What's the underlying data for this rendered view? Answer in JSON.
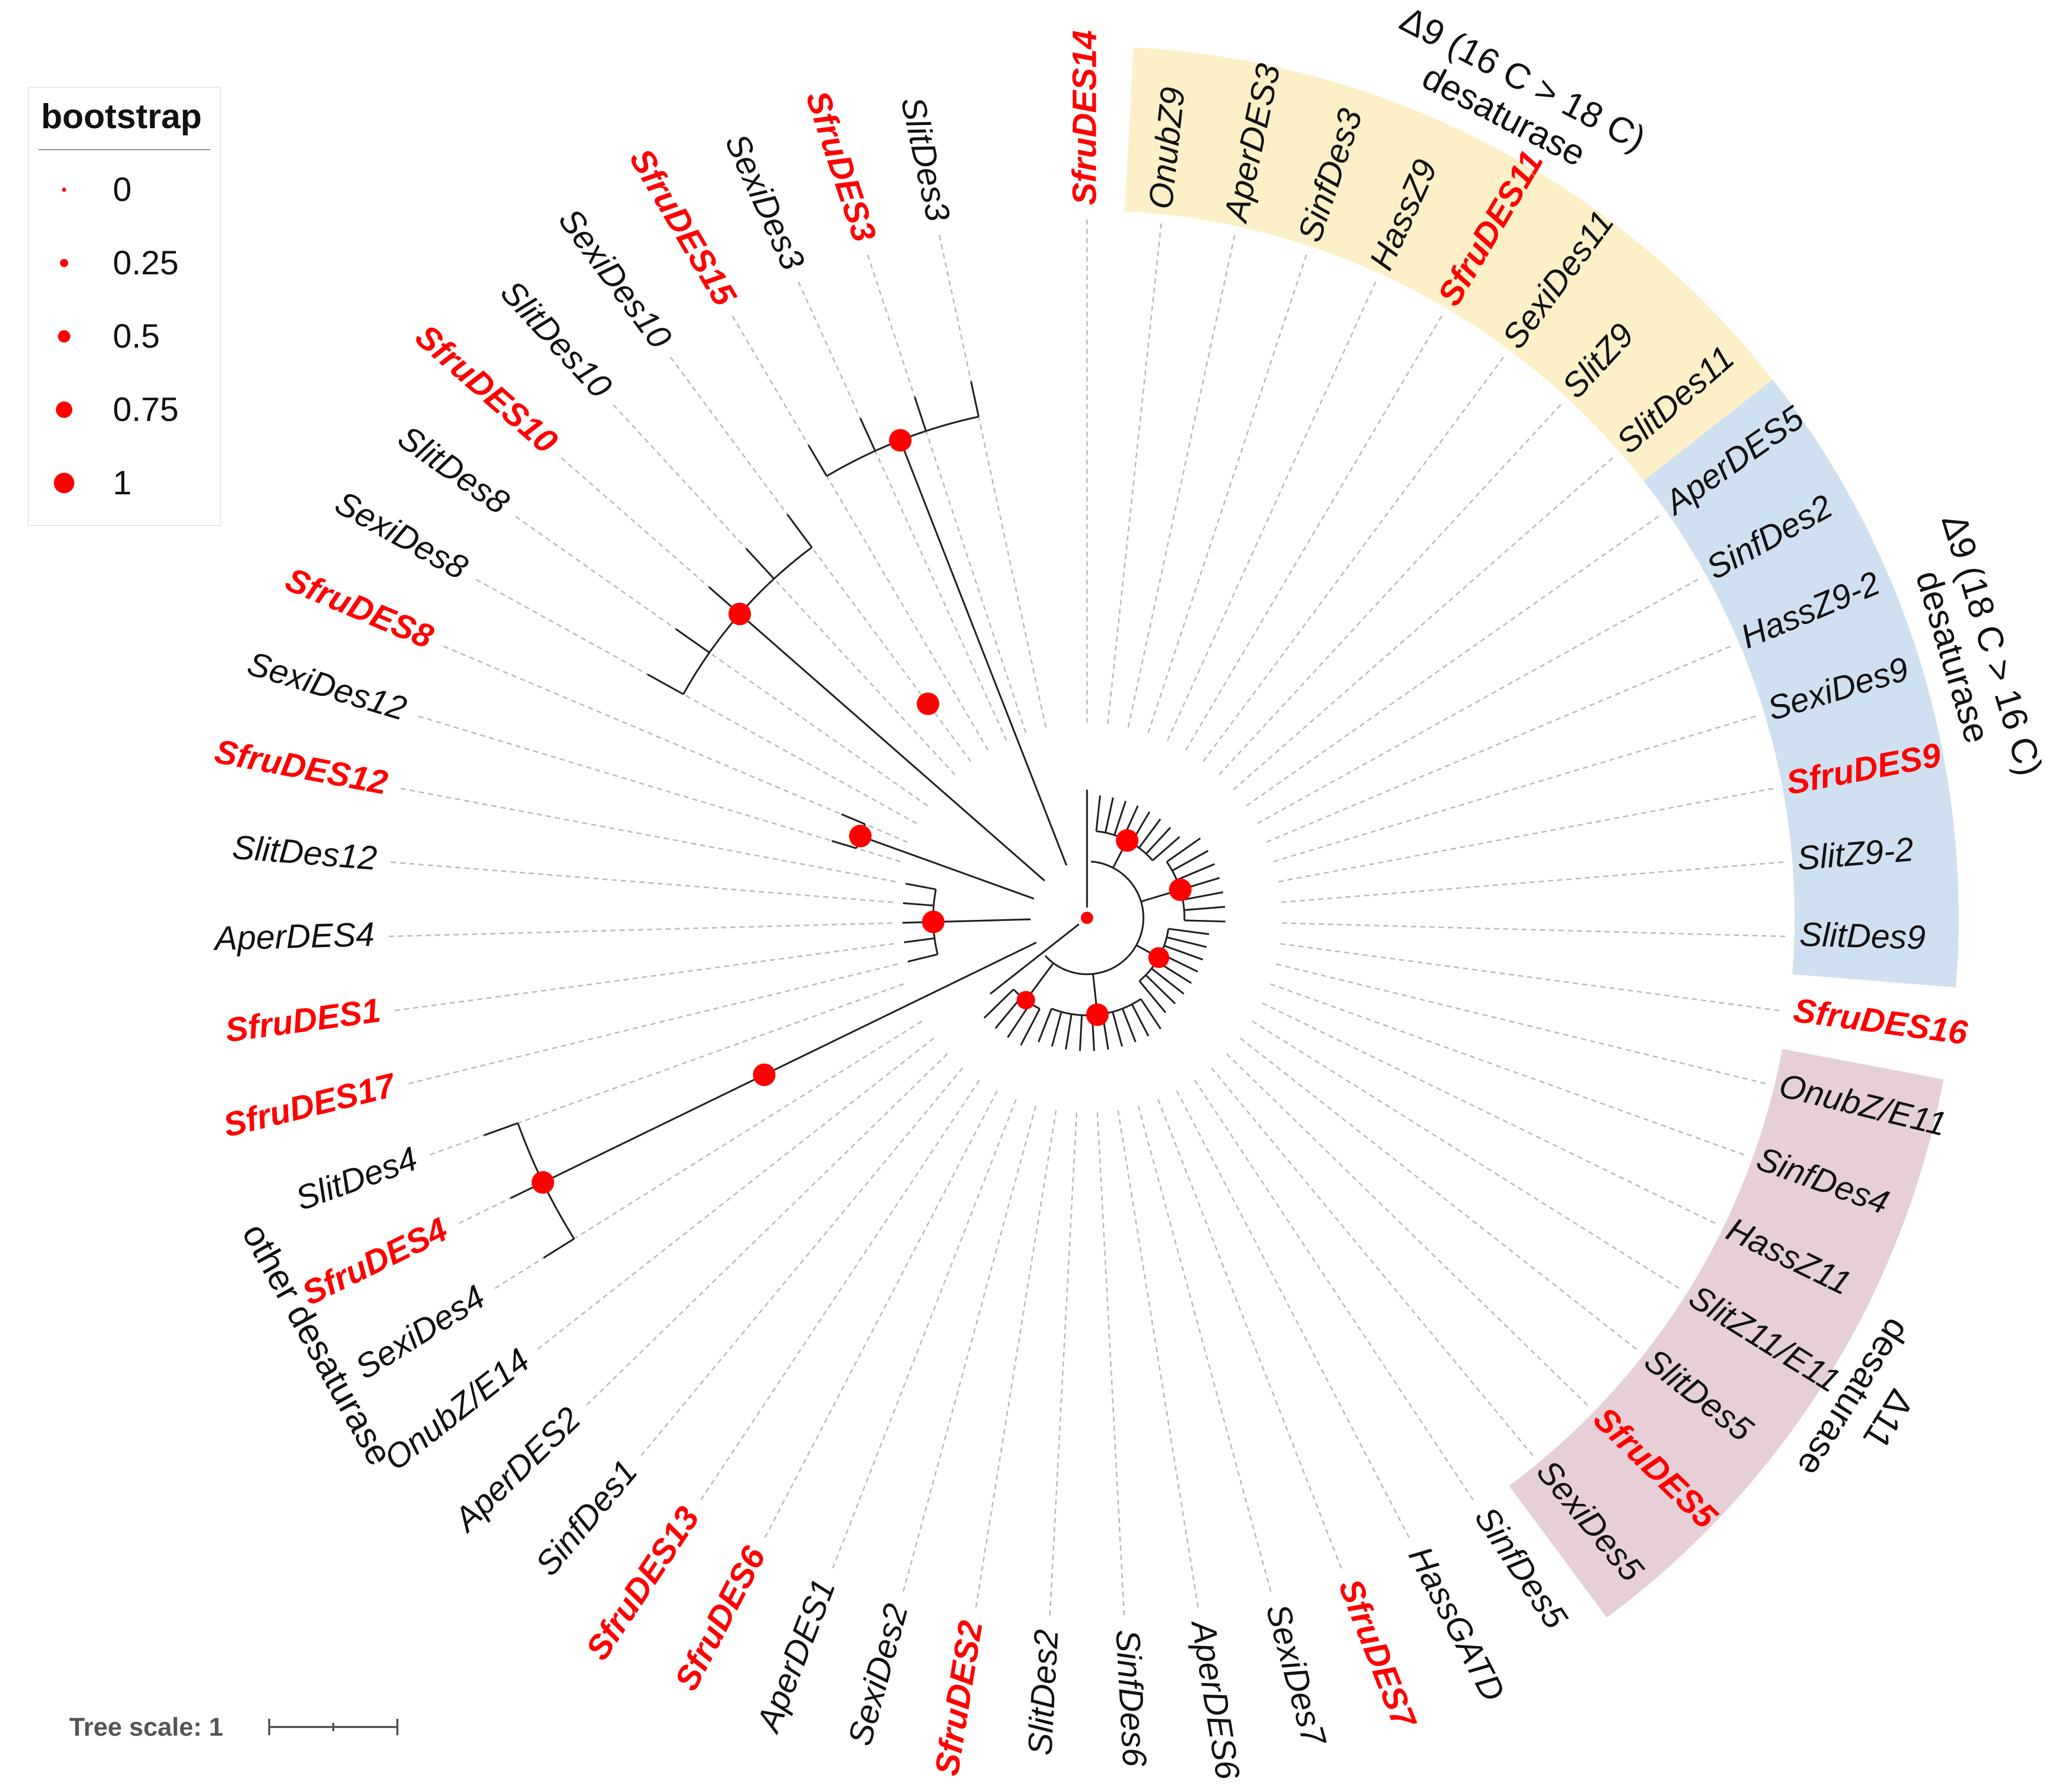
{
  "legend": {
    "title": "bootstrap",
    "items": [
      {
        "label": "0",
        "value": 0
      },
      {
        "label": "0.25",
        "value": 0.25
      },
      {
        "label": "0.5",
        "value": 0.5
      },
      {
        "label": "0.75",
        "value": 0.75
      },
      {
        "label": "1",
        "value": 1
      }
    ]
  },
  "scale": {
    "label": "Tree scale: 1"
  },
  "colors": {
    "highlight": "#ff0000",
    "normal": "#111111",
    "yellow": "#fdf0c8",
    "blue": "#cfe0f1",
    "pink": "#e7cfd7",
    "node": "#ff0000"
  },
  "leaves": [
    {
      "name": "SfruDES14",
      "hl": true
    },
    {
      "name": "OnubZ9",
      "hl": false
    },
    {
      "name": "AperDES3",
      "hl": false
    },
    {
      "name": "SinfDes3",
      "hl": false
    },
    {
      "name": "HassZ9",
      "hl": false
    },
    {
      "name": "SfruDES11",
      "hl": true
    },
    {
      "name": "SexiDes11",
      "hl": false
    },
    {
      "name": "SlitZ9",
      "hl": false
    },
    {
      "name": "SlitDes11",
      "hl": false
    },
    {
      "name": "AperDES5",
      "hl": false
    },
    {
      "name": "SinfDes2",
      "hl": false
    },
    {
      "name": "HassZ9-2",
      "hl": false
    },
    {
      "name": "SexiDes9",
      "hl": false
    },
    {
      "name": "SfruDES9",
      "hl": true
    },
    {
      "name": "SlitZ9-2",
      "hl": false
    },
    {
      "name": "SlitDes9",
      "hl": false
    },
    {
      "name": "SfruDES16",
      "hl": true
    },
    {
      "name": "OnubZ/E11",
      "hl": false
    },
    {
      "name": "SinfDes4",
      "hl": false
    },
    {
      "name": "HassZ11",
      "hl": false
    },
    {
      "name": "SlitZ11/E11",
      "hl": false
    },
    {
      "name": "SlitDes5",
      "hl": false
    },
    {
      "name": "SfruDES5",
      "hl": true
    },
    {
      "name": "SexiDes5",
      "hl": false
    },
    {
      "name": "SinfDes5",
      "hl": false
    },
    {
      "name": "HassGATD",
      "hl": false
    },
    {
      "name": "SfruDES7",
      "hl": true
    },
    {
      "name": "SexiDes7",
      "hl": false
    },
    {
      "name": "AperDES6",
      "hl": false
    },
    {
      "name": "SinfDes6",
      "hl": false
    },
    {
      "name": "SlitDes2",
      "hl": false
    },
    {
      "name": "SfruDES2",
      "hl": true
    },
    {
      "name": "SexiDes2",
      "hl": false
    },
    {
      "name": "AperDES1",
      "hl": false
    },
    {
      "name": "SfruDES6",
      "hl": true
    },
    {
      "name": "SfruDES13",
      "hl": true
    },
    {
      "name": "SinfDes1",
      "hl": false
    },
    {
      "name": "AperDES2",
      "hl": false
    },
    {
      "name": "OnubZ/E14",
      "hl": false
    },
    {
      "name": "SexiDes4",
      "hl": false
    },
    {
      "name": "SfruDES4",
      "hl": true
    },
    {
      "name": "SlitDes4",
      "hl": false
    },
    {
      "name": "SfruDES17",
      "hl": true
    },
    {
      "name": "SfruDES1",
      "hl": true
    },
    {
      "name": "AperDES4",
      "hl": false
    },
    {
      "name": "SlitDes12",
      "hl": false
    },
    {
      "name": "SfruDES12",
      "hl": true
    },
    {
      "name": "SexiDes12",
      "hl": false
    },
    {
      "name": "SfruDES8",
      "hl": true
    },
    {
      "name": "SexiDes8",
      "hl": false
    },
    {
      "name": "SlitDes8",
      "hl": false
    },
    {
      "name": "SfruDES10",
      "hl": true
    },
    {
      "name": "SlitDes10",
      "hl": false
    },
    {
      "name": "SexiDes10",
      "hl": false
    },
    {
      "name": "SfruDES15",
      "hl": true
    },
    {
      "name": "SexiDes3",
      "hl": false
    },
    {
      "name": "SfruDES3",
      "hl": true
    },
    {
      "name": "SlitDes3",
      "hl": false
    }
  ],
  "clades": [
    {
      "line1": "Δ9 (16 C > 18 C)",
      "line2": "desaturase",
      "band": "yellow",
      "first_leaf": 1,
      "last_leaf": 8
    },
    {
      "line1": "Δ9 (18 C > 16 C)",
      "line2": "desaturase",
      "band": "blue",
      "first_leaf": 9,
      "last_leaf": 15
    },
    {
      "line1": "Δ11",
      "line2": "desaturase",
      "band": "pink",
      "first_leaf": 17,
      "last_leaf": 23
    },
    {
      "line1": "other desaturase",
      "line2": "",
      "band": "none",
      "first_leaf": 38,
      "last_leaf": 41
    }
  ]
}
